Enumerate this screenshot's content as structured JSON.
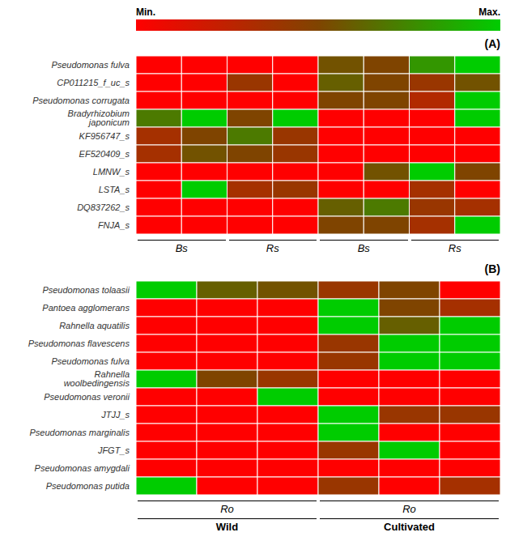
{
  "chart_data": [
    {
      "type": "heatmap",
      "title": "(A)",
      "rows": [
        "Pseudomonas fulva",
        "CP011215_f_uc_s",
        "Pseudomonas corrugata",
        "Bradyrhizobium japonicum",
        "KF956747_s",
        "EF520409_s",
        "LMNW_s",
        "LSTA_s",
        "DQ837262_s",
        "FNJA_s"
      ],
      "cells": [
        [
          0.0,
          0.0,
          0.0,
          0.0,
          0.55,
          0.5,
          0.8,
          1.0
        ],
        [
          0.0,
          0.0,
          0.4,
          0.0,
          0.6,
          0.5,
          0.4,
          0.55
        ],
        [
          0.0,
          0.0,
          0.0,
          0.0,
          0.5,
          0.5,
          0.3,
          1.0
        ],
        [
          0.7,
          1.0,
          0.5,
          1.0,
          0.0,
          0.0,
          0.0,
          1.0
        ],
        [
          0.35,
          0.5,
          0.7,
          0.4,
          0.0,
          0.0,
          0.0,
          0.0
        ],
        [
          0.35,
          0.55,
          0.5,
          0.4,
          0.0,
          0.0,
          0.0,
          0.0
        ],
        [
          0.0,
          0.0,
          0.0,
          0.0,
          0.0,
          0.55,
          1.0,
          0.5
        ],
        [
          0.0,
          1.0,
          0.35,
          0.4,
          0.0,
          0.0,
          0.35,
          0.0
        ],
        [
          0.0,
          0.0,
          0.0,
          0.0,
          0.6,
          0.7,
          0.4,
          0.35
        ],
        [
          0.0,
          0.0,
          0.0,
          0.0,
          0.5,
          0.5,
          0.35,
          1.0
        ]
      ],
      "zlim": [
        0,
        1
      ],
      "colors": [
        "#ff0000",
        "#7f4400",
        "#00cc00"
      ],
      "colorbar": {
        "ticks": [
          {
            "value": 0,
            "label": "Min."
          },
          {
            "value": 1,
            "label": "Max."
          }
        ]
      },
      "column_groups": [
        [
          {
            "label": "Bs",
            "columns": 2
          },
          {
            "label": "Rs",
            "columns": 2
          },
          {
            "label": "Bs",
            "columns": 2
          },
          {
            "label": "Rs",
            "columns": 2
          }
        ]
      ],
      "tick_labels": "y"
    },
    {
      "type": "heatmap",
      "title": "(B)",
      "rows": [
        "Pseudomonas tolaasii",
        "Pantoea agglomerans",
        "Rahnella aquatilis",
        "Pseudomonas flavescens",
        "Pseudomonas fulva",
        "Rahnella woolbedingensis",
        "Pseudomonas veronii",
        "JTJJ_s",
        "Pseudomonas marginalis",
        "JFGT_s",
        "Pseudomonas amygdali",
        "Pseudomonas putida"
      ],
      "cells": [
        [
          1.0,
          0.6,
          0.55,
          0.4,
          0.5,
          0.0
        ],
        [
          0.0,
          0.0,
          0.0,
          1.0,
          0.5,
          0.35
        ],
        [
          0.0,
          0.0,
          0.0,
          1.0,
          0.6,
          1.0
        ],
        [
          0.0,
          0.0,
          0.0,
          0.4,
          1.0,
          1.0
        ],
        [
          0.0,
          0.0,
          0.0,
          0.4,
          1.0,
          1.0
        ],
        [
          1.0,
          0.5,
          0.4,
          0.0,
          0.0,
          0.0
        ],
        [
          0.0,
          0.0,
          1.0,
          0.0,
          0.0,
          0.0
        ],
        [
          0.0,
          0.0,
          0.0,
          1.0,
          0.4,
          0.4
        ],
        [
          0.0,
          0.0,
          0.0,
          1.0,
          0.0,
          0.0
        ],
        [
          0.0,
          0.0,
          0.0,
          0.4,
          1.0,
          0.0
        ],
        [
          0.0,
          0.0,
          0.0,
          0.0,
          0.0,
          0.0
        ],
        [
          1.0,
          0.0,
          0.0,
          0.4,
          0.0,
          0.35
        ]
      ],
      "zlim": [
        0,
        1
      ],
      "colors": [
        "#ff0000",
        "#7f4400",
        "#00cc00"
      ],
      "column_groups": [
        [
          {
            "label": "Ro",
            "columns": 3
          },
          {
            "label": "Ro",
            "columns": 3
          }
        ],
        [
          {
            "label": "Wild",
            "columns": 3
          },
          {
            "label": "Cultivated",
            "columns": 3
          }
        ]
      ],
      "tick_labels": "y"
    }
  ]
}
